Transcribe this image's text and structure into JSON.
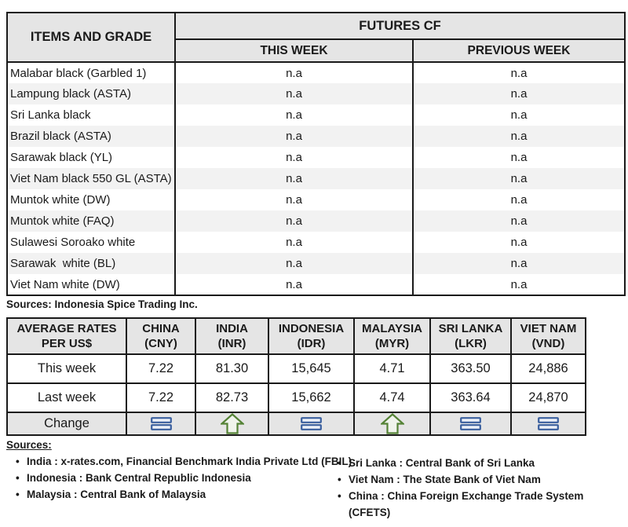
{
  "futures_table": {
    "items_header": "ITEMS AND GRADE",
    "group_header": "FUTURES CF",
    "col_this_week": "THIS WEEK",
    "col_previous_week": "PREVIOUS WEEK",
    "rows": [
      {
        "item": "Malabar black (Garbled 1)",
        "this_week": "n.a",
        "previous_week": "n.a"
      },
      {
        "item": "Lampung black (ASTA)",
        "this_week": "n.a",
        "previous_week": "n.a"
      },
      {
        "item": "Sri Lanka black",
        "this_week": "n.a",
        "previous_week": "n.a"
      },
      {
        "item": "Brazil black (ASTA)",
        "this_week": "n.a",
        "previous_week": "n.a"
      },
      {
        "item": "Sarawak black (YL)",
        "this_week": "n.a",
        "previous_week": "n.a"
      },
      {
        "item": "Viet Nam black 550 GL (ASTA)",
        "this_week": "n.a",
        "previous_week": "n.a"
      },
      {
        "item": "Muntok white (DW)",
        "this_week": "n.a",
        "previous_week": "n.a"
      },
      {
        "item": "Muntok white (FAQ)",
        "this_week": "n.a",
        "previous_week": "n.a"
      },
      {
        "item": "Sulawesi Soroako white",
        "this_week": "n.a",
        "previous_week": "n.a"
      },
      {
        "item": "Sarawak  white (BL)",
        "this_week": "n.a",
        "previous_week": "n.a"
      },
      {
        "item": "Viet Nam white (DW)",
        "this_week": "n.a",
        "previous_week": "n.a"
      }
    ],
    "source_note": "Sources: Indonesia Spice Trading Inc."
  },
  "rates_table": {
    "row_header_line1": "AVERAGE RATES",
    "row_header_line2": "PER US$",
    "columns": [
      {
        "country": "CHINA",
        "code": "(CNY)"
      },
      {
        "country": "INDIA",
        "code": "(INR)"
      },
      {
        "country": "INDONESIA",
        "code": "(IDR)"
      },
      {
        "country": "MALAYSIA",
        "code": "(MYR)"
      },
      {
        "country": "SRI LANKA",
        "code": "(LKR)"
      },
      {
        "country": "VIET NAM",
        "code": "(VND)"
      }
    ],
    "rows": [
      {
        "label": "This week",
        "values": [
          "7.22",
          "81.30",
          "15,645",
          "4.71",
          "363.50",
          "24,886"
        ]
      },
      {
        "label": "Last week",
        "values": [
          "7.22",
          "82.73",
          "15,662",
          "4.74",
          "363.64",
          "24,870"
        ]
      }
    ],
    "change_row": {
      "label": "Change",
      "indicators": [
        "equal",
        "up",
        "equal",
        "up",
        "equal",
        "equal"
      ]
    }
  },
  "sources": {
    "heading": "Sources:",
    "bullet_char": "•",
    "left_items": [
      "India : x-rates.com, Financial Benchmark India Private Ltd (FBIL)",
      "Indonesia : Bank Central Republic Indonesia",
      "Malaysia : Central Bank of Malaysia"
    ],
    "right_items": [
      "Sri Lanka : Central Bank of Sri Lanka",
      "Viet Nam : The State Bank of Viet Nam",
      "China : China Foreign Exchange Trade System (CFETS)"
    ]
  },
  "colors": {
    "icon_blue": "#3A5F9E",
    "icon_green": "#548235",
    "icon_fill_blue": "#EDF1F8",
    "icon_fill_green": "#F0F4EC"
  }
}
